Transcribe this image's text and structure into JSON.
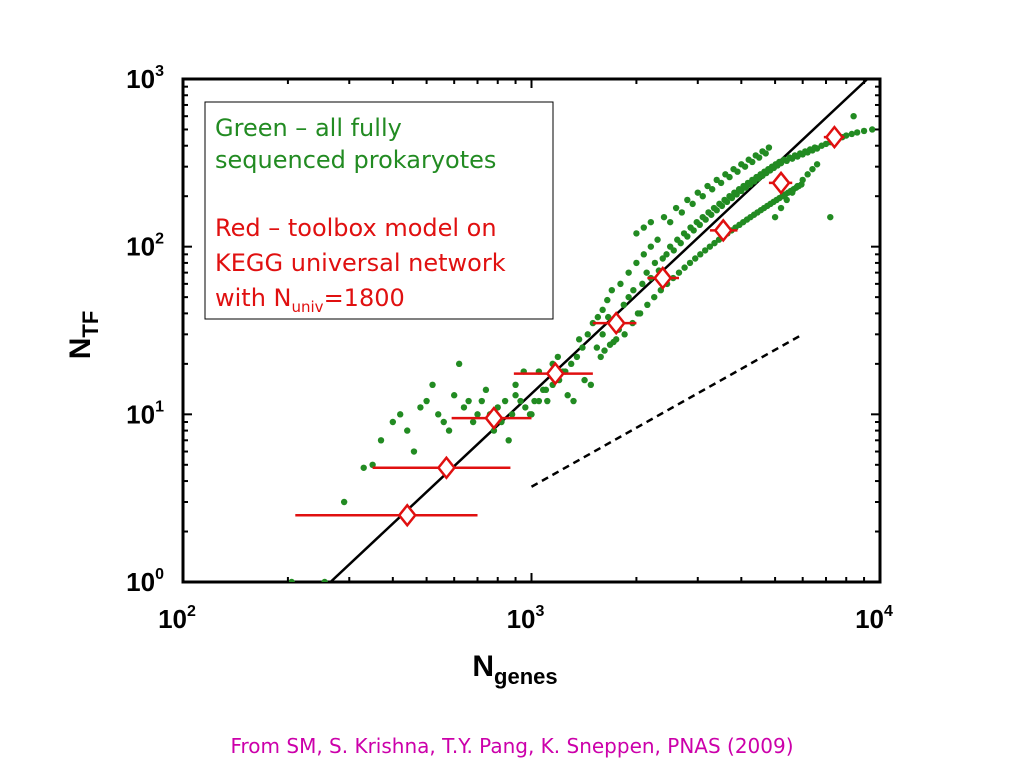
{
  "chart_data": {
    "type": "scatter",
    "xscale": "log",
    "yscale": "log",
    "xlim": [
      100,
      10000
    ],
    "ylim": [
      1,
      1000
    ],
    "x_ticks": [
      {
        "base": "10",
        "exp": "2"
      },
      {
        "base": "10",
        "exp": "3"
      },
      {
        "base": "10",
        "exp": "4"
      }
    ],
    "y_ticks": [
      {
        "base": "10",
        "exp": "0"
      },
      {
        "base": "10",
        "exp": "1"
      },
      {
        "base": "10",
        "exp": "2"
      },
      {
        "base": "10",
        "exp": "3"
      }
    ],
    "xlabel": {
      "main": "N",
      "sub": "genes"
    },
    "ylabel": {
      "main": "N",
      "sub": "TF"
    },
    "legend": {
      "green_line1": "Green – all fully",
      "green_line2": "sequenced prokaryotes",
      "red_line1": "Red – toolbox model on",
      "red_line2": "KEGG universal network",
      "red_line3_prefix": "with N",
      "red_line3_sub": "univ",
      "red_line3_suffix": "=1800"
    },
    "colors": {
      "prokaryotes": "#228b22",
      "model": "#e01010",
      "fit": "#000000"
    },
    "fit_line": {
      "x": [
        265,
        9200
      ],
      "y": [
        1,
        1000
      ]
    },
    "dashed_line": {
      "x": [
        1000,
        6000
      ],
      "y": [
        3.7,
        30
      ]
    },
    "series": [
      {
        "color": "#e01010",
        "marker": "diamond",
        "points": [
          {
            "x": 440,
            "y": 2.5,
            "xerr": [
              210,
              700
            ]
          },
          {
            "x": 570,
            "y": 4.8,
            "xerr": [
              350,
              870
            ]
          },
          {
            "x": 780,
            "y": 9.5,
            "xerr": [
              590,
              1000
            ]
          },
          {
            "x": 1170,
            "y": 17.5,
            "xerr": [
              890,
              1500
            ]
          },
          {
            "x": 1750,
            "y": 35,
            "xerr": [
              1500,
              2000
            ]
          },
          {
            "x": 2380,
            "y": 65,
            "xerr": [
              2150,
              2650
            ]
          },
          {
            "x": 3550,
            "y": 125,
            "xerr": [
              3250,
              3900
            ]
          },
          {
            "x": 5200,
            "y": 240,
            "xerr": [
              4800,
              5600
            ]
          },
          {
            "x": 7400,
            "y": 450,
            "xerr": [
              6900,
              7900
            ]
          }
        ]
      },
      {
        "color": "#228b22",
        "marker": "dot",
        "x": [
          205,
          255,
          290,
          330,
          350,
          370,
          400,
          420,
          440,
          460,
          480,
          500,
          520,
          540,
          560,
          580,
          600,
          620,
          640,
          660,
          680,
          700,
          720,
          740,
          760,
          780,
          800,
          820,
          840,
          860,
          880,
          900,
          930,
          960,
          990,
          1020,
          1050,
          1080,
          1110,
          1150,
          1190,
          1230,
          1270,
          1320,
          1370,
          1420,
          1480,
          1540,
          1600,
          1660,
          1720,
          1780,
          1840,
          1900,
          1960,
          2020,
          2080,
          2140,
          2200,
          2260,
          2320,
          2380,
          2440,
          2500,
          2560,
          2620,
          2680,
          2740,
          2800,
          2860,
          2920,
          2980,
          3040,
          3100,
          3160,
          3220,
          3280,
          3340,
          3400,
          3460,
          3520,
          3580,
          3640,
          3700,
          3760,
          3820,
          3880,
          3940,
          4000,
          4060,
          4120,
          4180,
          4240,
          4300,
          4360,
          4420,
          4480,
          4540,
          4600,
          4660,
          4720,
          4780,
          4840,
          4900,
          4960,
          5020,
          5080,
          5140,
          5200,
          5300,
          5400,
          5500,
          5600,
          5700,
          5800,
          5900,
          6000,
          6100,
          6200,
          6300,
          6400,
          6500,
          6600,
          6800,
          7000,
          7200,
          7400,
          7600,
          7800,
          8000,
          8300,
          8600,
          9000,
          9500,
          1800,
          1900,
          2000,
          2100,
          2200,
          2300,
          1700,
          1650,
          1600,
          1550,
          2500,
          2700,
          2900,
          3100,
          3300,
          3500,
          3700,
          3900,
          4100,
          4300,
          4500,
          4700,
          2050,
          2150,
          2250,
          2350,
          2450,
          2550,
          2650,
          2750,
          2850,
          2950,
          1950,
          1850,
          1750,
          1680,
          1620,
          1580,
          3050,
          3150,
          3250,
          3350,
          3450,
          3550,
          3650,
          3750,
          3850,
          3950,
          4050,
          4150,
          4250,
          4350,
          4450,
          4550,
          4650,
          4750,
          4850,
          4950,
          5050,
          5150,
          5250,
          5350,
          5450,
          5550,
          5650,
          5750,
          5850,
          5950,
          1000,
          1100,
          1200,
          1300,
          1400,
          900,
          950,
          1050,
          1150,
          1250,
          1350,
          1450,
          1500,
          2000,
          2100,
          2200,
          2400,
          2600,
          2800,
          3000,
          3200,
          3400,
          3600,
          3800,
          4000,
          4200,
          4400,
          4600,
          4800,
          5000,
          5200,
          5400,
          5600,
          5800,
          6000,
          6200,
          6400,
          6600,
          7200,
          8400
        ],
        "y": [
          1.0,
          1.0,
          3.0,
          4.8,
          5.0,
          7.0,
          9.0,
          10.0,
          8.0,
          6.0,
          11.0,
          12.0,
          15.0,
          10.0,
          9.0,
          8.0,
          13.0,
          20.0,
          11.0,
          12.0,
          9.0,
          10.0,
          12.0,
          14.0,
          10.0,
          8.0,
          11.0,
          9.0,
          12.0,
          7.0,
          10.0,
          13.0,
          12.0,
          11.0,
          10.0,
          12.0,
          18.0,
          14.0,
          12.0,
          15.0,
          22.0,
          18.0,
          13.0,
          12.0,
          28.0,
          16.0,
          15.0,
          25.0,
          30.0,
          38.0,
          27.0,
          32.0,
          45.0,
          50.0,
          55.0,
          40.0,
          60.0,
          70.0,
          65.0,
          80.0,
          72.0,
          85.0,
          90.0,
          100.0,
          95.0,
          110.0,
          105.0,
          120.0,
          115.0,
          130.0,
          125.0,
          140.0,
          135.0,
          150.0,
          145.0,
          160.0,
          155.0,
          170.0,
          165.0,
          180.0,
          175.0,
          190.0,
          185.0,
          200.0,
          195.0,
          210.0,
          205.0,
          220.0,
          215.0,
          230.0,
          225.0,
          240.0,
          235.0,
          250.0,
          245.0,
          260.0,
          255.0,
          270.0,
          265.0,
          280.0,
          275.0,
          290.0,
          285.0,
          300.0,
          295.0,
          310.0,
          305.0,
          320.0,
          315.0,
          330.0,
          325.0,
          340.0,
          335.0,
          350.0,
          345.0,
          360.0,
          355.0,
          370.0,
          365.0,
          380.0,
          375.0,
          390.0,
          385.0,
          400.0,
          410.0,
          420.0,
          430.0,
          440.0,
          450.0,
          460.0,
          470.0,
          480.0,
          490.0,
          500.0,
          60.0,
          70.0,
          80.0,
          90.0,
          100.0,
          110.0,
          55.0,
          48.0,
          42.0,
          38.0,
          140.0,
          160.0,
          180.0,
          200.0,
          220.0,
          240.0,
          260.0,
          280.0,
          300.0,
          320.0,
          340.0,
          360.0,
          40.0,
          45.0,
          50.0,
          55.0,
          60.0,
          65.0,
          70.0,
          75.0,
          80.0,
          85.0,
          35.0,
          30.0,
          28.0,
          26.0,
          24.0,
          22.0,
          90.0,
          95.0,
          100.0,
          105.0,
          110.0,
          115.0,
          120.0,
          125.0,
          130.0,
          135.0,
          140.0,
          145.0,
          150.0,
          155.0,
          160.0,
          165.0,
          170.0,
          175.0,
          180.0,
          185.0,
          190.0,
          195.0,
          200.0,
          205.0,
          210.0,
          215.0,
          220.0,
          225.0,
          230.0,
          235.0,
          10.0,
          14.0,
          16.0,
          20.0,
          25.0,
          15.0,
          18.0,
          12.0,
          20.0,
          18.0,
          22.0,
          30.0,
          35.0,
          120.0,
          130.0,
          140.0,
          150.0,
          170.0,
          190.0,
          210.0,
          230.0,
          250.0,
          270.0,
          290.0,
          310.0,
          330.0,
          350.0,
          370.0,
          390.0,
          150.0,
          170.0,
          190.0,
          210.0,
          230.0,
          250.0,
          270.0,
          290.0,
          310.0,
          150.0,
          600.0
        ]
      }
    ]
  },
  "citation": "From SM, S. Krishna, T.Y. Pang, K. Sneppen, PNAS (2009)"
}
